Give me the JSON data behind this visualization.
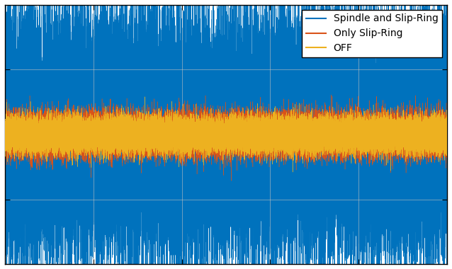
{
  "title": "",
  "xlabel": "",
  "ylabel": "",
  "legend_labels": [
    "Spindle and Slip-Ring",
    "Only Slip-Ring",
    "OFF"
  ],
  "line_colors": [
    "#0072BD",
    "#D95319",
    "#EDB120"
  ],
  "n_samples": 50000,
  "spindle_amplitude": 0.45,
  "slip_ring_amplitude": 0.08,
  "off_amplitude": 0.065,
  "ylim": [
    -1.0,
    1.0
  ],
  "xlim_min": 0,
  "linewidth": 0.3,
  "figsize": [
    6.38,
    3.8
  ],
  "dpi": 100,
  "grid": true,
  "legend_loc": "upper right",
  "legend_fontsize": 10,
  "spine_linewidth": 1.0,
  "n_xticks": 4,
  "background_color": "white"
}
